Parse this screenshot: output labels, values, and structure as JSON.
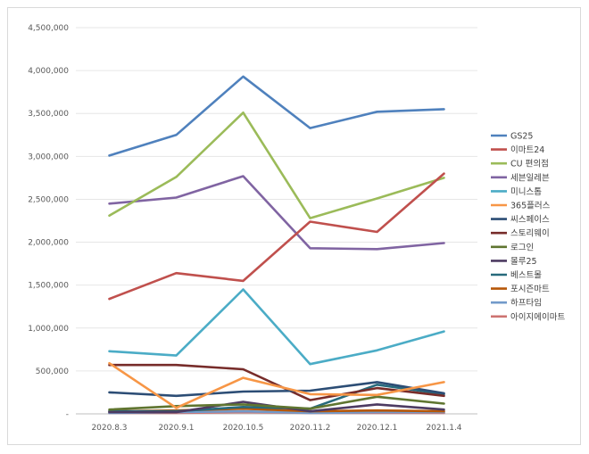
{
  "chart_data": {
    "type": "line",
    "title": "",
    "xlabel": "",
    "ylabel": "",
    "categories": [
      "2020.8.3",
      "2020.9.1",
      "2020.10.5",
      "2020.11.2",
      "2020.12.1",
      "2021.1.4"
    ],
    "y_ticks": [
      "-",
      "500,000",
      "1,000,000",
      "1,500,000",
      "2,000,000",
      "2,500,000",
      "3,000,000",
      "3,500,000",
      "4,000,000",
      "4,500,000"
    ],
    "ylim": [
      0,
      4500000
    ],
    "grid": true,
    "legend": "right",
    "series": [
      {
        "name": "GS25",
        "color": "#4F81BD",
        "values": [
          3010000,
          3250000,
          3930000,
          3330000,
          3520000,
          3550000
        ]
      },
      {
        "name": "이마트24",
        "color": "#C0504D",
        "values": [
          1340000,
          1640000,
          1550000,
          2240000,
          2120000,
          2800000
        ]
      },
      {
        "name": "CU 편의점",
        "color": "#9BBB59",
        "values": [
          2310000,
          2760000,
          3510000,
          2280000,
          2510000,
          2750000
        ]
      },
      {
        "name": "세븐일레븐",
        "color": "#8064A2",
        "values": [
          2450000,
          2520000,
          2770000,
          1930000,
          1920000,
          1990000
        ]
      },
      {
        "name": "미니스톱",
        "color": "#4BACC6",
        "values": [
          730000,
          680000,
          1450000,
          580000,
          740000,
          960000
        ]
      },
      {
        "name": "365플러스",
        "color": "#F79646",
        "values": [
          590000,
          70000,
          420000,
          230000,
          220000,
          370000
        ]
      },
      {
        "name": "씨스페이스",
        "color": "#2C4D75",
        "values": [
          250000,
          210000,
          260000,
          270000,
          370000,
          240000
        ]
      },
      {
        "name": "스토리웨이",
        "color": "#772C2A",
        "values": [
          570000,
          570000,
          520000,
          160000,
          300000,
          210000
        ]
      },
      {
        "name": "로그인",
        "color": "#5F7530",
        "values": [
          50000,
          90000,
          110000,
          60000,
          200000,
          120000
        ]
      },
      {
        "name": "몰루25",
        "color": "#4D3B62",
        "values": [
          20000,
          20000,
          140000,
          30000,
          110000,
          50000
        ]
      },
      {
        "name": "베스트몰",
        "color": "#276A7C",
        "values": [
          30000,
          30000,
          80000,
          60000,
          340000,
          230000
        ]
      },
      {
        "name": "포시즌마트",
        "color": "#B65708",
        "values": [
          30000,
          40000,
          60000,
          30000,
          40000,
          30000
        ]
      },
      {
        "name": "하프타임",
        "color": "#729ACA",
        "values": [
          10000,
          20000,
          30000,
          10000,
          20000,
          20000
        ]
      },
      {
        "name": "아이지에이마트",
        "color": "#CD7371",
        "values": [
          10000,
          10000,
          20000,
          10000,
          10000,
          10000
        ]
      }
    ]
  }
}
